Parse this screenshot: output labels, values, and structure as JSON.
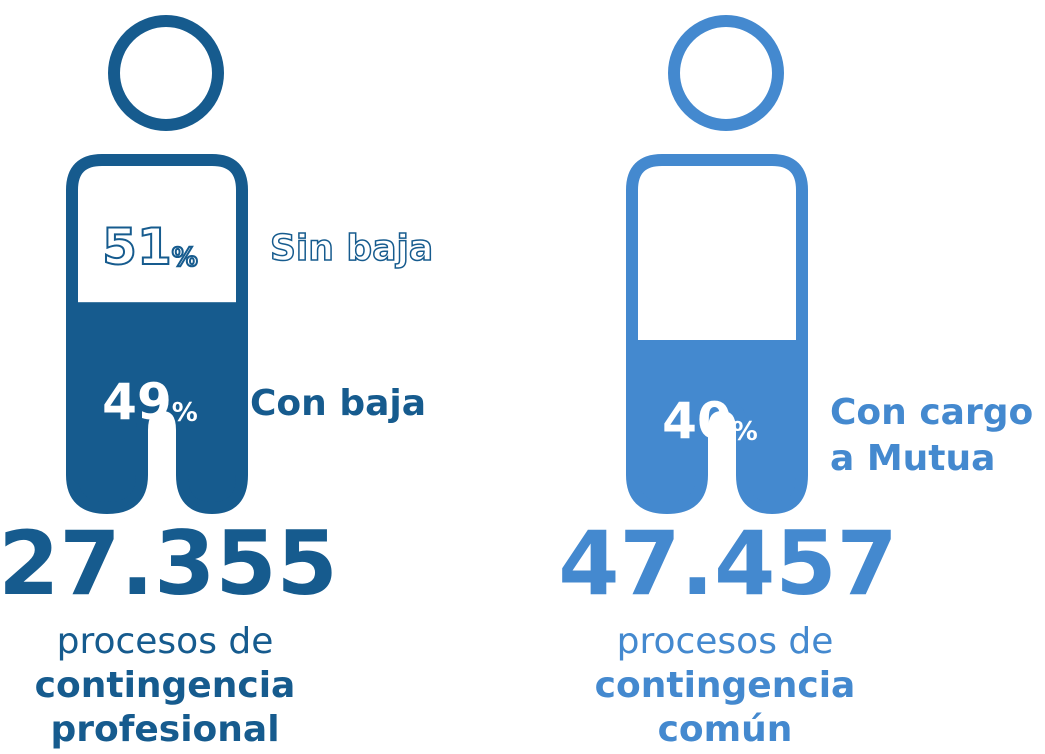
{
  "figures": [
    {
      "color": "#165b8e",
      "total": "27.355",
      "description": [
        "procesos de",
        "contingencia",
        "profesional"
      ],
      "segments": [
        {
          "value": 51,
          "unit": "%",
          "label": [
            "Sin baja"
          ],
          "style": "outline"
        },
        {
          "value": 49,
          "unit": "%",
          "label": [
            "Con baja"
          ],
          "style": "filled"
        }
      ]
    },
    {
      "color": "#4489cf",
      "total": "47.457",
      "description": [
        "procesos de",
        "contingencia",
        "común"
      ],
      "segments": [
        {
          "value": 40,
          "unit": "%",
          "label": [
            "Con cargo",
            "a Mutua"
          ],
          "style": "filled"
        }
      ]
    }
  ]
}
